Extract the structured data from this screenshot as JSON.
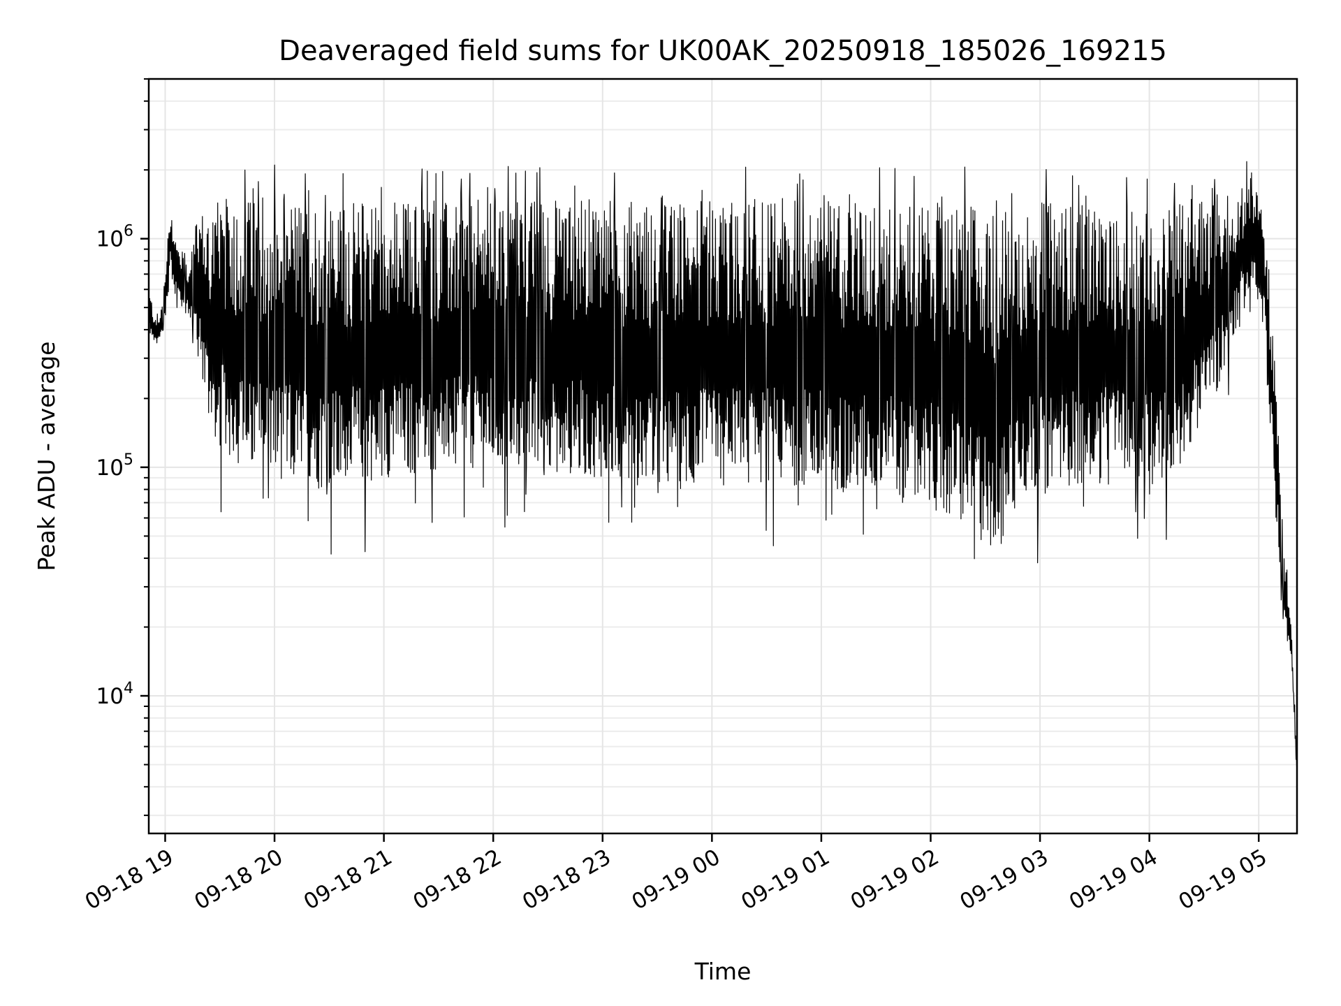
{
  "chart_data": {
    "type": "line",
    "title": "Deaveraged field sums for UK00AK_20250918_185026_169215",
    "xlabel": "Time",
    "ylabel": "Peak ADU - average",
    "yscale": "log",
    "ylim": [
      2500,
      5000000
    ],
    "xlim_hours": [
      -0.15,
      10.35
    ],
    "grid": true,
    "series_color": "#000000",
    "x_ticks": [
      {
        "hour": 0,
        "label": "09-18 19"
      },
      {
        "hour": 1,
        "label": "09-18 20"
      },
      {
        "hour": 2,
        "label": "09-18 21"
      },
      {
        "hour": 3,
        "label": "09-18 22"
      },
      {
        "hour": 4,
        "label": "09-18 23"
      },
      {
        "hour": 5,
        "label": "09-19 00"
      },
      {
        "hour": 6,
        "label": "09-19 01"
      },
      {
        "hour": 7,
        "label": "09-19 02"
      },
      {
        "hour": 8,
        "label": "09-19 03"
      },
      {
        "hour": 9,
        "label": "09-19 04"
      },
      {
        "hour": 10,
        "label": "09-19 05"
      }
    ],
    "y_ticks": [
      {
        "value": 10000,
        "base": "10",
        "exp": "4"
      },
      {
        "value": 100000,
        "base": "10",
        "exp": "5"
      },
      {
        "value": 1000000,
        "base": "10",
        "exp": "6"
      }
    ],
    "envelope": {
      "hours": [
        -0.15,
        -0.1,
        -0.05,
        0.0,
        0.05,
        0.1,
        0.2,
        0.3,
        0.4,
        0.5,
        0.6,
        0.7,
        0.8,
        1.0,
        1.2,
        1.4,
        1.6,
        1.8,
        2.0,
        2.5,
        3.0,
        3.5,
        4.0,
        4.5,
        5.0,
        5.5,
        6.0,
        6.5,
        7.0,
        7.3,
        7.5,
        7.6,
        7.7,
        7.8,
        8.0,
        8.5,
        9.0,
        9.3,
        9.6,
        9.8,
        9.95,
        10.05,
        10.1,
        10.15,
        10.2,
        10.25,
        10.3,
        10.35
      ],
      "high": [
        600000,
        500000,
        450000,
        700000,
        1500000,
        1000000,
        800000,
        1300000,
        1400000,
        1500000,
        1500000,
        1500000,
        1500000,
        1500000,
        1500000,
        1500000,
        1450000,
        1500000,
        1500000,
        1450000,
        1500000,
        1500000,
        1500000,
        1450000,
        1500000,
        1500000,
        1500000,
        1450000,
        1450000,
        1400000,
        1350000,
        1350000,
        1350000,
        1400000,
        1450000,
        1400000,
        1400000,
        1450000,
        1600000,
        1700000,
        2000000,
        1200000,
        600000,
        400000,
        80000,
        40000,
        20000,
        5000
      ],
      "low": [
        400000,
        320000,
        350000,
        450000,
        700000,
        550000,
        450000,
        350000,
        150000,
        120000,
        110000,
        100000,
        95000,
        90000,
        85000,
        80000,
        80000,
        85000,
        90000,
        95000,
        100000,
        95000,
        90000,
        80000,
        80000,
        85000,
        80000,
        75000,
        65000,
        55000,
        45000,
        40000,
        50000,
        70000,
        80000,
        85000,
        80000,
        100000,
        200000,
        400000,
        600000,
        400000,
        150000,
        60000,
        30000,
        18000,
        14000,
        4000
      ]
    }
  }
}
